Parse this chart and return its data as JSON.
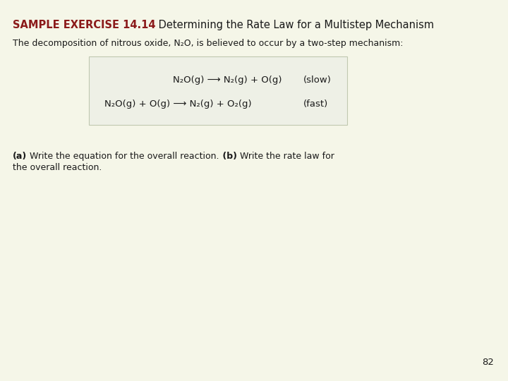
{
  "bg_color": "#f5f6e8",
  "title_bold": "SAMPLE EXERCISE 14.14",
  "title_normal": " Determining the Rate Law for a Multistep Mechanism",
  "title_color_bold": "#8b1a1a",
  "title_color_normal": "#1a1a1a",
  "title_fontsize": 10.5,
  "subtitle": "The decomposition of nitrous oxide, N₂O, is believed to occur by a two-step mechanism:",
  "subtitle_fontsize": 9.0,
  "reaction_box_color": "#eef0e6",
  "reaction_box_edge": "#c0c8b0",
  "reaction_fontsize": 9.5,
  "question_fontsize": 9.0,
  "page_number": "82",
  "page_fontsize": 9.5
}
